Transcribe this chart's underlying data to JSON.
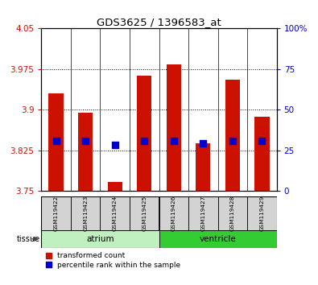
{
  "title": "GDS3625 / 1396583_at",
  "samples": [
    "GSM119422",
    "GSM119423",
    "GSM119424",
    "GSM119425",
    "GSM119426",
    "GSM119427",
    "GSM119428",
    "GSM119429"
  ],
  "red_values": [
    3.93,
    3.895,
    3.767,
    3.963,
    3.984,
    3.838,
    3.955,
    3.887
  ],
  "blue_values": [
    3.843,
    3.843,
    3.835,
    3.843,
    3.843,
    3.838,
    3.843,
    3.843
  ],
  "baseline": 3.75,
  "ylim_left": [
    3.75,
    4.05
  ],
  "ylim_right": [
    0,
    100
  ],
  "yticks_left": [
    3.75,
    3.825,
    3.9,
    3.975,
    4.05
  ],
  "yticks_right": [
    0,
    25,
    50,
    75,
    100
  ],
  "ytick_labels_left": [
    "3.75",
    "3.825",
    "3.9",
    "3.975",
    "4.05"
  ],
  "ytick_labels_right": [
    "0",
    "25",
    "50",
    "75",
    "100%"
  ],
  "tissue_groups": [
    {
      "label": "atrium",
      "start": 0,
      "end": 3,
      "color": "#c0f0c0"
    },
    {
      "label": "ventricle",
      "start": 4,
      "end": 7,
      "color": "#33cc33"
    }
  ],
  "tissue_label": "tissue",
  "bar_color": "#cc1100",
  "dot_color": "#0000cc",
  "tick_label_color_left": "#cc1100",
  "tick_label_color_right": "#0000cc",
  "bar_width": 0.5,
  "dot_size": 35,
  "legend_items": [
    {
      "color": "#cc1100",
      "label": "transformed count"
    },
    {
      "color": "#0000cc",
      "label": "percentile rank within the sample"
    }
  ]
}
